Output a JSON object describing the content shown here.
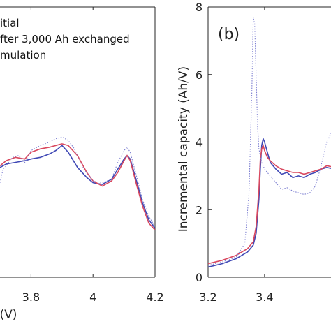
{
  "chart_data": [
    {
      "type": "line",
      "panel_label": "",
      "xlabel": "(V)",
      "ylabel": "",
      "xlim": [
        3.7,
        4.2
      ],
      "ylim": [
        0,
        8
      ],
      "xticks": [
        3.8,
        4,
        4.2
      ],
      "xtick_labels": [
        "3.8",
        "4",
        "4.2"
      ],
      "grid": false,
      "legend": {
        "placement": "top-left",
        "entries": [
          "itial",
          "fter 3,000 Ah exchanged",
          "mulation"
        ]
      },
      "series": [
        {
          "name": "itial",
          "color": "#3f48b5",
          "style": "solid",
          "x": [
            3.7,
            3.72,
            3.75,
            3.78,
            3.8,
            3.83,
            3.86,
            3.88,
            3.9,
            3.92,
            3.95,
            3.98,
            4.0,
            4.03,
            4.06,
            4.08,
            4.1,
            4.11,
            4.12,
            4.14,
            4.16,
            4.18,
            4.2
          ],
          "y": [
            3.25,
            3.35,
            3.4,
            3.45,
            3.5,
            3.55,
            3.65,
            3.75,
            3.9,
            3.7,
            3.25,
            2.95,
            2.8,
            2.75,
            2.9,
            3.2,
            3.5,
            3.6,
            3.5,
            2.85,
            2.2,
            1.7,
            1.45
          ]
        },
        {
          "name": "fter 3,000 Ah exchanged",
          "color": "#d9485f",
          "style": "solid",
          "x": [
            3.7,
            3.72,
            3.75,
            3.78,
            3.8,
            3.83,
            3.86,
            3.88,
            3.9,
            3.92,
            3.95,
            3.98,
            4.0,
            4.03,
            4.06,
            4.08,
            4.1,
            4.11,
            4.12,
            4.14,
            4.16,
            4.18,
            4.2
          ],
          "y": [
            3.3,
            3.45,
            3.55,
            3.5,
            3.7,
            3.8,
            3.85,
            3.9,
            3.95,
            3.9,
            3.6,
            3.1,
            2.85,
            2.7,
            2.85,
            3.1,
            3.45,
            3.6,
            3.45,
            2.75,
            2.1,
            1.6,
            1.4
          ]
        },
        {
          "name": "mulation",
          "color": "#7d7fd1",
          "style": "dotted",
          "x": [
            3.7,
            3.71,
            3.72,
            3.74,
            3.76,
            3.78,
            3.8,
            3.83,
            3.86,
            3.88,
            3.9,
            3.92,
            3.94,
            3.97,
            4.0,
            4.03,
            4.06,
            4.08,
            4.1,
            4.11,
            4.12,
            4.14,
            4.16,
            4.18,
            4.2
          ],
          "y": [
            2.8,
            3.2,
            3.3,
            3.55,
            3.6,
            3.4,
            3.75,
            3.9,
            4.0,
            4.1,
            4.15,
            4.05,
            3.8,
            3.2,
            2.85,
            2.8,
            2.9,
            3.4,
            3.75,
            3.85,
            3.7,
            3.0,
            2.3,
            1.8,
            1.5
          ]
        }
      ]
    },
    {
      "type": "line",
      "panel_label": "(b)",
      "xlabel": "",
      "ylabel": "Incremental capacity (Ah/V)",
      "xlim": [
        3.2,
        3.65
      ],
      "ylim": [
        0,
        8
      ],
      "xticks": [
        3.2,
        3.4
      ],
      "xtick_labels": [
        "3.2",
        "3.4"
      ],
      "yticks": [
        0,
        2,
        4,
        6,
        8
      ],
      "ytick_labels": [
        "0",
        "2",
        "4",
        "6",
        "8"
      ],
      "grid": false,
      "series": [
        {
          "name": "",
          "color": "#3f48b5",
          "style": "solid",
          "x": [
            3.2,
            3.25,
            3.3,
            3.34,
            3.36,
            3.37,
            3.38,
            3.385,
            3.39,
            3.395,
            3.4,
            3.41,
            3.42,
            3.44,
            3.46,
            3.48,
            3.5,
            3.52,
            3.54,
            3.56,
            3.58,
            3.6,
            3.62,
            3.65
          ],
          "y": [
            0.3,
            0.4,
            0.55,
            0.75,
            0.95,
            1.3,
            2.3,
            3.2,
            3.9,
            4.1,
            4.0,
            3.7,
            3.4,
            3.2,
            3.05,
            3.1,
            2.95,
            3.0,
            2.95,
            3.05,
            3.1,
            3.2,
            3.25,
            3.2
          ]
        },
        {
          "name": "",
          "color": "#d9485f",
          "style": "solid",
          "x": [
            3.2,
            3.25,
            3.3,
            3.34,
            3.36,
            3.37,
            3.38,
            3.385,
            3.39,
            3.395,
            3.4,
            3.41,
            3.42,
            3.44,
            3.46,
            3.48,
            3.5,
            3.52,
            3.54,
            3.56,
            3.58,
            3.6,
            3.62,
            3.65
          ],
          "y": [
            0.4,
            0.5,
            0.65,
            0.85,
            1.05,
            1.5,
            2.6,
            3.5,
            3.8,
            3.9,
            3.75,
            3.55,
            3.45,
            3.3,
            3.2,
            3.15,
            3.1,
            3.1,
            3.05,
            3.1,
            3.15,
            3.2,
            3.3,
            3.25
          ]
        },
        {
          "name": "",
          "color": "#7d7fd1",
          "style": "dotted",
          "x": [
            3.2,
            3.25,
            3.3,
            3.33,
            3.345,
            3.355,
            3.36,
            3.365,
            3.37,
            3.375,
            3.38,
            3.39,
            3.4,
            3.42,
            3.44,
            3.46,
            3.48,
            3.5,
            3.52,
            3.54,
            3.56,
            3.58,
            3.6,
            3.62,
            3.65
          ],
          "y": [
            0.35,
            0.45,
            0.6,
            1.0,
            2.5,
            5.5,
            7.7,
            7.5,
            6.0,
            4.5,
            3.8,
            3.4,
            3.2,
            3.0,
            2.8,
            2.6,
            2.65,
            2.55,
            2.5,
            2.45,
            2.5,
            2.7,
            3.3,
            4.0,
            4.5
          ]
        }
      ]
    }
  ]
}
